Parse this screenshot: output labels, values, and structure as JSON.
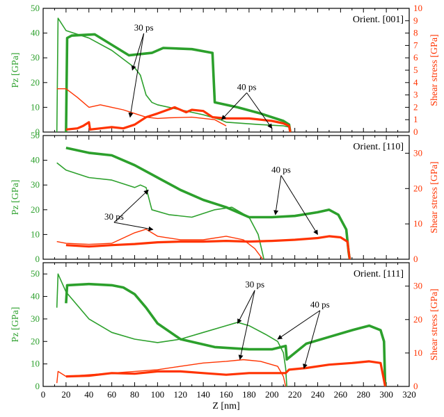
{
  "colors": {
    "pz": "#2ca02c",
    "shear": "#ff3300",
    "frame": "#000000",
    "arrow": "#000000"
  },
  "chart_data": {
    "type": "line",
    "shared_x": {
      "xlabel": "Z [nm]",
      "xlim": [
        0,
        320
      ],
      "xticks": [
        0,
        10,
        20,
        30,
        40,
        50,
        60,
        70,
        80,
        90,
        100,
        110,
        120,
        130,
        140,
        150,
        160,
        170,
        180,
        190,
        200,
        210,
        220,
        230,
        240,
        250,
        260,
        270,
        280,
        290,
        300,
        310,
        320
      ]
    },
    "panels": [
      {
        "annotation": "Orient. [001]",
        "ylabel": "Pz [GPa]",
        "ylim": [
          0,
          50
        ],
        "yticks": [
          0,
          10,
          20,
          30,
          40,
          50
        ],
        "ylabel2": "Shear stress [GPa]",
        "ylim2": [
          0,
          10
        ],
        "yticks2": [
          0,
          1,
          2,
          3,
          4,
          5,
          6,
          7,
          8,
          9,
          10
        ],
        "labels": [
          {
            "text": "30 ps",
            "x": 88,
            "y": 41,
            "targets": [
              [
                78,
                25
              ],
              [
                76,
                6
              ]
            ]
          },
          {
            "text": "40 ps",
            "x": 178,
            "y": 17,
            "targets": [
              [
                156,
                5
              ],
              [
                200,
                1.5
              ]
            ]
          }
        ],
        "series": [
          {
            "axis": "left",
            "width": 1.6,
            "x": [
              12,
              13,
              20,
              40,
              60,
              80,
              85,
              90,
              95,
              100,
              120,
              140,
              155,
              160,
              190,
              210,
              215,
              216
            ],
            "y": [
              0,
              46,
              41,
              38,
              33,
              26,
              23,
              15,
              12,
              11,
              9,
              7,
              5,
              4,
              3,
              2.5,
              2,
              0
            ]
          },
          {
            "axis": "left",
            "width": 3.6,
            "x": [
              20,
              21,
              25,
              45,
              75,
              95,
              105,
              130,
              148,
              150,
              170,
              190,
              210,
              215,
              216
            ],
            "y": [
              0,
              38,
              39,
              39.5,
              31,
              32,
              34,
              33.5,
              32,
              12,
              10,
              7.5,
              4.5,
              3,
              0
            ]
          },
          {
            "axis": "right",
            "width": 1.4,
            "x": [
              12,
              20,
              30,
              40,
              50,
              60,
              70,
              80,
              90,
              100,
              110,
              130,
              150,
              160
            ],
            "y": [
              3.5,
              3.5,
              2.8,
              2.0,
              2.2,
              2.0,
              1.8,
              1.5,
              1.2,
              1.1,
              1.15,
              1.2,
              1.0,
              0.5
            ]
          },
          {
            "axis": "right",
            "width": 3.2,
            "x": [
              20,
              30,
              35,
              40,
              41,
              50,
              60,
              70,
              80,
              90,
              100,
              115,
              125,
              130,
              140,
              148,
              160,
              180,
              200,
              210,
              215,
              216
            ],
            "y": [
              0.2,
              0.3,
              0.5,
              0.8,
              0.2,
              0.3,
              0.4,
              0.3,
              0.6,
              1.2,
              1.5,
              2.0,
              1.6,
              1.8,
              1.7,
              1.2,
              1.1,
              1.1,
              0.9,
              0.7,
              0.5,
              0
            ]
          }
        ]
      },
      {
        "annotation": "Orient. [110]",
        "ylabel": "Pz [GPa]",
        "ylim": [
          0,
          50
        ],
        "yticks": [
          0,
          10,
          20,
          30,
          40,
          50
        ],
        "ylabel2": "Shear stress [GPa]",
        "ylim2": [
          0,
          35
        ],
        "yticks2": [
          0,
          10,
          20,
          30
        ],
        "labels": [
          {
            "text": "30 ps",
            "x": 62,
            "y": 16,
            "targets": [
              [
                92,
                28
              ],
              [
                96,
                12
              ]
            ]
          },
          {
            "text": "40 ps",
            "x": 208,
            "y": 35,
            "targets": [
              [
                203,
                18
              ],
              [
                240,
                10
              ]
            ]
          }
        ],
        "series": [
          {
            "axis": "left",
            "width": 1.6,
            "x": [
              12,
              20,
              40,
              60,
              80,
              85,
              90,
              95,
              110,
              130,
              150,
              165,
              180,
              188,
              192,
              193
            ],
            "y": [
              39,
              36,
              33,
              32,
              29,
              30,
              29,
              20,
              18,
              17,
              20,
              21,
              17,
              10,
              2,
              0
            ]
          },
          {
            "axis": "left",
            "width": 3.6,
            "x": [
              20,
              40,
              60,
              80,
              100,
              120,
              140,
              160,
              180,
              200,
              220,
              240,
              250,
              258,
              265,
              267,
              268
            ],
            "y": [
              45,
              43,
              42,
              38,
              33,
              28,
              24,
              21,
              17,
              17,
              17.5,
              19,
              20,
              18,
              12,
              3,
              0
            ]
          },
          {
            "axis": "right",
            "width": 1.4,
            "x": [
              12,
              20,
              40,
              60,
              80,
              90,
              95,
              100,
              120,
              140,
              160,
              175,
              185,
              192
            ],
            "y": [
              5,
              4.5,
              4.2,
              4.5,
              7.5,
              8.5,
              7.5,
              6.5,
              5.5,
              5.5,
              6.5,
              5.5,
              3,
              0
            ]
          },
          {
            "axis": "right",
            "width": 3.2,
            "x": [
              20,
              40,
              60,
              80,
              100,
              120,
              140,
              160,
              180,
              200,
              220,
              240,
              250,
              260,
              266,
              268
            ],
            "y": [
              4,
              3.6,
              4,
              4.3,
              4.8,
              5,
              5,
              5.2,
              5,
              5.2,
              5.5,
              6,
              6.5,
              6.2,
              5,
              0
            ]
          }
        ]
      },
      {
        "annotation": "Orient. [111]",
        "ylabel": "Pz [GPa]",
        "ylim": [
          0,
          55
        ],
        "yticks": [
          0,
          10,
          20,
          30,
          40,
          50
        ],
        "ylabel2": "Shear stress [GPa]",
        "ylim2": [
          0,
          37
        ],
        "yticks2": [
          0,
          10,
          20,
          30
        ],
        "labels": [
          {
            "text": "30 ps",
            "x": 185,
            "y": 44,
            "targets": [
              [
                170,
                28
              ],
              [
                172,
                12
              ]
            ]
          },
          {
            "text": "40 ps",
            "x": 242,
            "y": 35,
            "targets": [
              [
                205,
                21
              ],
              [
                228,
                8
              ]
            ]
          }
        ],
        "series": [
          {
            "axis": "left",
            "width": 1.6,
            "x": [
              12,
              13,
              20,
              40,
              60,
              80,
              100,
              120,
              140,
              160,
              170,
              180,
              195,
              205,
              210,
              212,
              213
            ],
            "y": [
              35,
              50,
              42,
              30,
              24,
              21,
              19.5,
              21,
              24,
              27,
              28.5,
              27,
              23,
              20,
              15,
              8,
              0
            ]
          },
          {
            "axis": "left",
            "width": 3.6,
            "x": [
              20,
              21,
              40,
              60,
              70,
              80,
              90,
              100,
              120,
              150,
              180,
              200,
              212,
              213,
              230,
              250,
              270,
              285,
              295,
              298,
              299
            ],
            "y": [
              37,
              45,
              45.5,
              45,
              44,
              41,
              35,
              28,
              21,
              17.5,
              16.5,
              16.5,
              18,
              12,
              19,
              22,
              25,
              27,
              25,
              20,
              0
            ]
          },
          {
            "axis": "right",
            "width": 1.4,
            "x": [
              12,
              13,
              20,
              40,
              60,
              80,
              100,
              120,
              140,
              160,
              175,
              190,
              205,
              210,
              212
            ],
            "y": [
              1,
              4.5,
              3,
              3.5,
              4,
              4.5,
              5,
              6,
              7,
              7.5,
              8,
              7.5,
              6,
              3,
              0
            ]
          },
          {
            "axis": "right",
            "width": 3.2,
            "x": [
              20,
              40,
              60,
              80,
              100,
              120,
              140,
              160,
              180,
              200,
              212,
              215,
              230,
              250,
              270,
              285,
              295,
              299
            ],
            "y": [
              3,
              3.2,
              4,
              3.8,
              4.5,
              4.5,
              4,
              3.5,
              4,
              4,
              4,
              5,
              5.5,
              6.5,
              7,
              7.5,
              7,
              0
            ]
          }
        ]
      }
    ]
  }
}
